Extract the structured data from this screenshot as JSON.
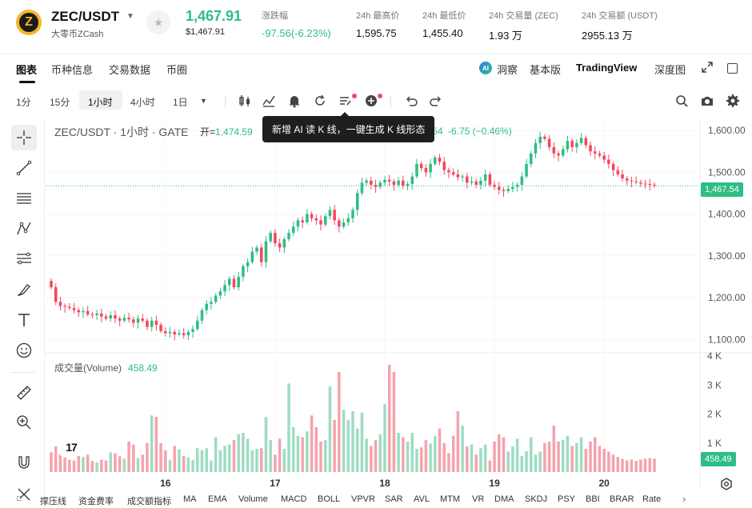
{
  "header": {
    "coin_glyph": "Z",
    "pair": "ZEC/USDT",
    "pair_sub": "大零币ZCash",
    "last_price": "1,467.91",
    "last_price_usd": "$1,467.91",
    "stats": [
      {
        "label": "涨跌幅",
        "value": "-97.56(-6.23%)"
      },
      {
        "label": "24h 最高价",
        "value": "1,595.75"
      },
      {
        "label": "24h 最低价",
        "value": "1,455.40"
      },
      {
        "label": "24h 交易量 (ZEC)",
        "value": "1.93 万"
      },
      {
        "label": "24h 交易额 (USDT)",
        "value": "2955.13 万"
      }
    ]
  },
  "nav": {
    "tabs": [
      "图表",
      "币种信息",
      "交易数据",
      "币圈"
    ],
    "ai_badge": "AI",
    "ai_label": "洞察",
    "basic": "基本版",
    "tradingview": "TradingView",
    "depth": "深度图"
  },
  "toolbar": {
    "timeframes": [
      "1分",
      "15分",
      "1小时",
      "4小时",
      "1日"
    ],
    "active_timeframe": "1小时"
  },
  "tooltip": "新增 AI 读 K 线，一键生成 K 线形态",
  "legend": {
    "symbol": "ZEC/USDT · 1小时 · GATE",
    "open_label": "开=",
    "open_value": "1,474.59",
    "tail": ".54",
    "change": "-6.75 (−0.46%)"
  },
  "volume_legend": {
    "label": "成交量(Volume)",
    "value": "458.49"
  },
  "tv_logo": "17",
  "price_tags": {
    "last": "1,467.54",
    "volume": "458.49"
  },
  "indicators": [
    "撑压线",
    "资金费率",
    "成交额指标",
    "MA",
    "EMA",
    "Volume",
    "MACD",
    "BOLL",
    "VPVR",
    "SAR",
    "AVL",
    "MTM",
    "VR",
    "DMA",
    "SKDJ",
    "PSY",
    "BBI",
    "BRAR",
    "Rate"
  ],
  "colors": {
    "up": "#2ebd85",
    "down": "#f6465d",
    "up_vol": "#9fdcc3",
    "down_vol": "#f5a3ae"
  },
  "chart_data": {
    "type": "candlestick",
    "price_ticks": [
      1600,
      1500,
      1400,
      1300,
      1200,
      1100
    ],
    "price_tick_labels": [
      "1,600.00",
      "1,500.00",
      "1,400.00",
      "1,300.00",
      "1,200.00",
      "1,100.00"
    ],
    "volume_ticks": [
      4000,
      3000,
      2000,
      1000
    ],
    "volume_tick_labels": [
      "4 K",
      "3 K",
      "2 K",
      "1 K"
    ],
    "x_tick_labels": [
      "16",
      "17",
      "18",
      "19",
      "20"
    ],
    "ylim": [
      1070,
      1625
    ],
    "volume_ylim": [
      0,
      4000
    ],
    "last_price": 1467.54,
    "closes": [
      1225,
      1190,
      1180,
      1178,
      1175,
      1170,
      1165,
      1168,
      1160,
      1158,
      1162,
      1155,
      1150,
      1158,
      1150,
      1145,
      1152,
      1148,
      1140,
      1150,
      1145,
      1130,
      1145,
      1135,
      1120,
      1115,
      1118,
      1112,
      1115,
      1110,
      1118,
      1125,
      1145,
      1170,
      1185,
      1190,
      1205,
      1215,
      1230,
      1245,
      1225,
      1250,
      1275,
      1285,
      1310,
      1320,
      1285,
      1335,
      1355,
      1330,
      1320,
      1340,
      1355,
      1370,
      1385,
      1380,
      1400,
      1390,
      1385,
      1375,
      1395,
      1410,
      1385,
      1370,
      1380,
      1390,
      1410,
      1450,
      1475,
      1480,
      1470,
      1465,
      1475,
      1482,
      1478,
      1470,
      1480,
      1468,
      1472,
      1490,
      1520,
      1510,
      1500,
      1520,
      1535,
      1525,
      1505,
      1500,
      1495,
      1488,
      1490,
      1475,
      1478,
      1470,
      1480,
      1495,
      1470,
      1465,
      1458,
      1455,
      1460,
      1465,
      1470,
      1490,
      1520,
      1545,
      1570,
      1585,
      1580,
      1560,
      1545,
      1540,
      1555,
      1575,
      1560,
      1570,
      1582,
      1565,
      1550,
      1545,
      1540,
      1530,
      1520,
      1505,
      1495,
      1485,
      1480,
      1478,
      1476,
      1473,
      1472,
      1470,
      1467.54
    ],
    "volumes": [
      680,
      880,
      640,
      500,
      420,
      400,
      1050,
      520,
      600,
      380,
      330,
      420,
      400,
      680,
      650,
      540,
      460,
      1050,
      950,
      480,
      600,
      1000,
      1950,
      1900,
      1000,
      750,
      420,
      900,
      780,
      550,
      500,
      420,
      820,
      750,
      820,
      400,
      1200,
      750,
      900,
      950,
      1100,
      1300,
      1350,
      1150,
      750,
      800,
      820,
      1900,
      1100,
      600,
      1150,
      800,
      3050,
      1550,
      1250,
      1200,
      1400,
      1950,
      1550,
      1050,
      1100,
      2950,
      1800,
      3450,
      2150,
      1800,
      2100,
      1500,
      2050,
      1150,
      900,
      1100,
      1300,
      2350,
      3700,
      3450,
      1350,
      1200,
      1050,
      1350,
      800,
      850,
      1100,
      980,
      1250,
      1500,
      1000,
      650,
      1250,
      2100,
      1600,
      880,
      950,
      600,
      820,
      950,
      400,
      1050,
      1300,
      1200,
      700,
      880,
      1150,
      550,
      720,
      1200,
      600,
      700,
      1000,
      1050,
      1600,
      1050,
      1100,
      1250,
      900,
      1000,
      1200,
      800,
      1050,
      1200,
      900,
      800,
      700,
      600,
      520,
      450,
      400,
      430,
      380,
      430,
      460,
      480,
      458.49
    ]
  }
}
